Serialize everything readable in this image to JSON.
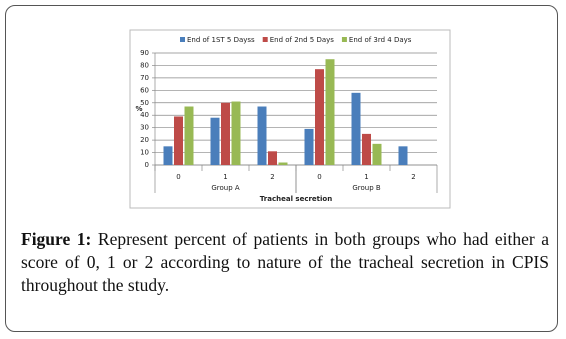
{
  "chart_data": {
    "type": "bar",
    "categories": [
      "0",
      "1",
      "2",
      "0",
      "1",
      "2"
    ],
    "groups": [
      "Group A",
      "Group B"
    ],
    "x_label": "Tracheal secretion",
    "y_label": "%",
    "series": [
      {
        "name": "End of 1ST 5 Dayss",
        "color": "#4a7ebb",
        "values": [
          15,
          38,
          47,
          29,
          58,
          15
        ]
      },
      {
        "name": "End of 2nd 5 Days",
        "color": "#be4b48",
        "values": [
          39,
          50,
          11,
          77,
          25,
          0
        ]
      },
      {
        "name": "End of 3rd 4 Days",
        "color": "#98b954",
        "values": [
          47,
          51,
          2,
          85,
          17,
          0
        ]
      }
    ],
    "ylim": [
      0,
      90
    ],
    "yticks": [
      0,
      10,
      20,
      30,
      40,
      50,
      60,
      70,
      80,
      90
    ],
    "grid": true
  },
  "caption": {
    "label": "Figure 1:",
    "text": "Represent percent of patients in both groups who had either a score of 0, 1 or 2 according to nature of the tracheal secretion in CPIS throughout the study."
  }
}
